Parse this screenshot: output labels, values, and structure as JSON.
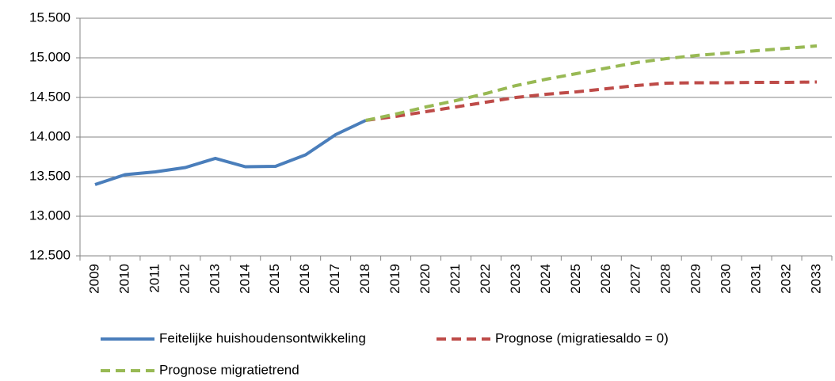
{
  "chart_data": {
    "type": "line",
    "categories": [
      "2009",
      "2010",
      "2011",
      "2012",
      "2013",
      "2014",
      "2015",
      "2016",
      "2017",
      "2018",
      "2019",
      "2020",
      "2021",
      "2022",
      "2023",
      "2024",
      "2025",
      "2026",
      "2027",
      "2028",
      "2029",
      "2030",
      "2031",
      "2032",
      "2033"
    ],
    "series": [
      {
        "name": "Feitelijke huishoudensontwikkeling",
        "color": "#4a7ebb",
        "dash": false,
        "values": [
          13400,
          13525,
          13560,
          13615,
          13730,
          13625,
          13630,
          13775,
          14030,
          14210,
          null,
          null,
          null,
          null,
          null,
          null,
          null,
          null,
          null,
          null,
          null,
          null,
          null,
          null,
          null
        ]
      },
      {
        "name": "Prognose (migratiesaldo = 0)",
        "color": "#be4b48",
        "dash": true,
        "values": [
          null,
          null,
          null,
          null,
          null,
          null,
          null,
          null,
          null,
          14210,
          14260,
          14320,
          14380,
          14440,
          14500,
          14540,
          14570,
          14610,
          14650,
          14680,
          14685,
          14685,
          14690,
          14690,
          14695
        ]
      },
      {
        "name": "Prognose migratietrend",
        "color": "#98b954",
        "dash": true,
        "values": [
          null,
          null,
          null,
          null,
          null,
          null,
          null,
          null,
          null,
          14210,
          14290,
          14380,
          14460,
          14550,
          14650,
          14730,
          14800,
          14870,
          14940,
          14990,
          15030,
          15060,
          15090,
          15120,
          15150
        ]
      }
    ],
    "ylim": [
      12500,
      15500
    ],
    "yticks": [
      {
        "value": 12500,
        "label": "12.500"
      },
      {
        "value": 13000,
        "label": "13.000"
      },
      {
        "value": 13500,
        "label": "13.500"
      },
      {
        "value": 14000,
        "label": "14.000"
      },
      {
        "value": 14500,
        "label": "14.500"
      },
      {
        "value": 15000,
        "label": "15.000"
      },
      {
        "value": 15500,
        "label": "15.500"
      }
    ],
    "grid": true,
    "legend": "bottom"
  }
}
